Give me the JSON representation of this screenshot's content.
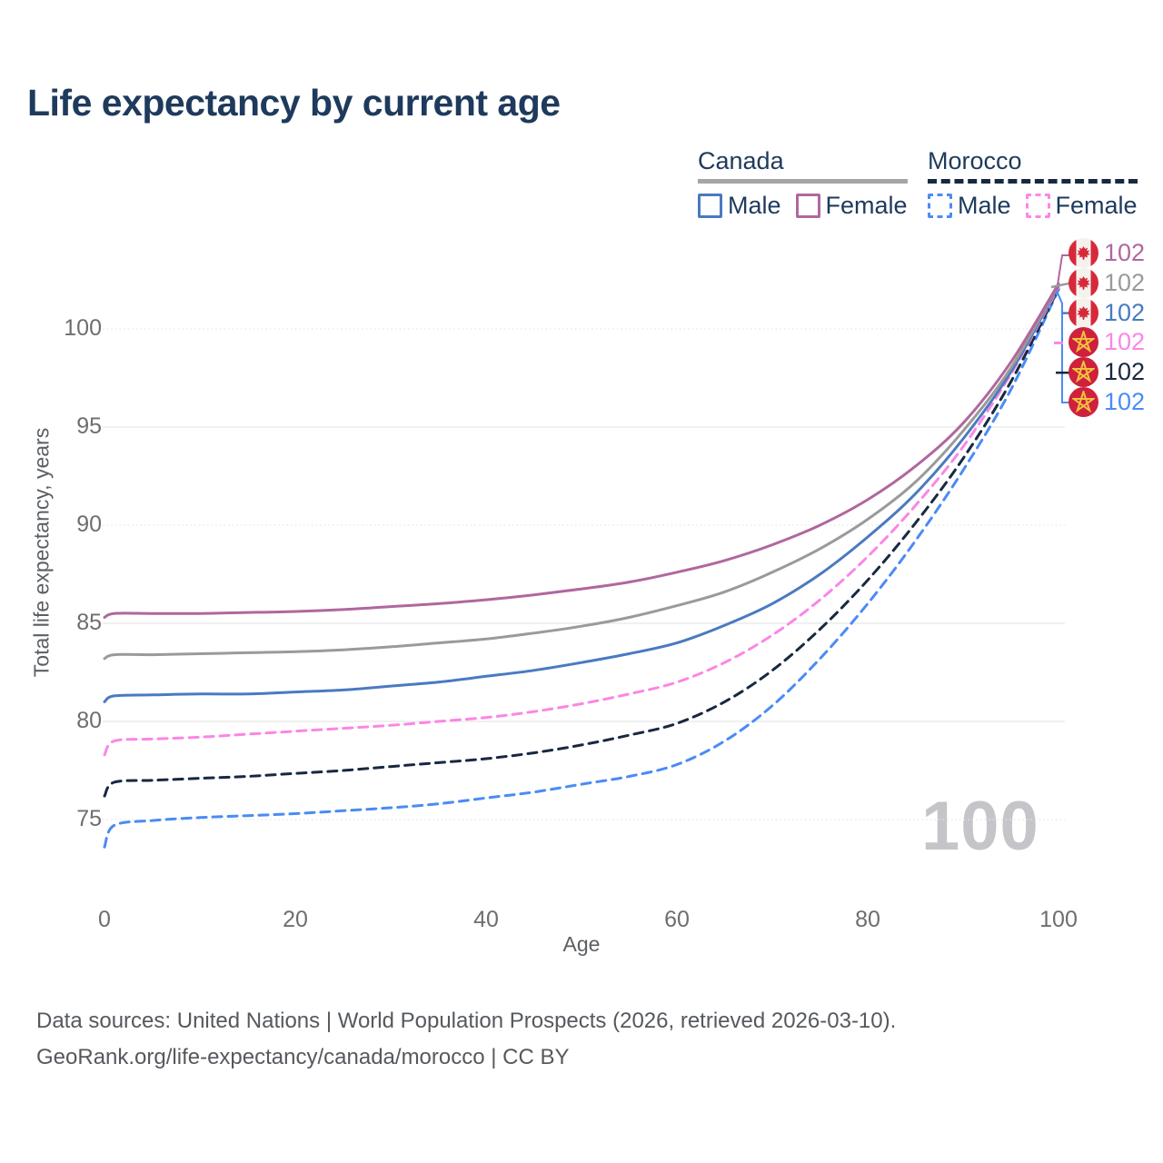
{
  "title": "Life expectancy by current age",
  "watermark": "100",
  "legend": {
    "groups": [
      {
        "label": "Canada",
        "line_style": "solid",
        "underline_color": "#a5a5a5",
        "items": [
          {
            "label": "Male",
            "color": "#4a7ac0"
          },
          {
            "label": "Female",
            "color": "#b0679e"
          }
        ]
      },
      {
        "label": "Morocco",
        "line_style": "dashed",
        "underline_color": "#172940",
        "items": [
          {
            "label": "Male",
            "color": "#4b8bf5"
          },
          {
            "label": "Female",
            "color": "#fb86e5"
          }
        ]
      }
    ]
  },
  "axes": {
    "x_title": "Age",
    "y_title": "Total life expectancy, years"
  },
  "end_labels": [
    {
      "flag": "canada",
      "series": "canada-female",
      "value": "102",
      "color": "#b0679e"
    },
    {
      "flag": "canada",
      "series": "canada-total",
      "value": "102",
      "color": "#9a9a9a"
    },
    {
      "flag": "canada",
      "series": "canada-male",
      "value": "102",
      "color": "#4a7ac0"
    },
    {
      "flag": "morocco",
      "series": "morocco-female",
      "value": "102",
      "color": "#fb86e5"
    },
    {
      "flag": "morocco",
      "series": "morocco-total",
      "value": "102",
      "color": "#172940"
    },
    {
      "flag": "morocco",
      "series": "morocco-male",
      "value": "102",
      "color": "#4b8bf5"
    }
  ],
  "footer": {
    "line1": "Data sources: United Nations | World Population Prospects (2026, retrieved 2026-03-10).",
    "line2": "GeoRank.org/life-expectancy/canada/morocco | CC BY"
  },
  "chart_data": {
    "type": "line",
    "title": "Life expectancy by current age",
    "xlabel": "Age",
    "ylabel": "Total life expectancy, years",
    "xlim": [
      0,
      100
    ],
    "ylim": [
      73,
      103
    ],
    "x_ticks": [
      0,
      20,
      40,
      60,
      80,
      100
    ],
    "y_ticks": [
      75,
      80,
      85,
      90,
      95,
      100
    ],
    "grid": "horizontal-only",
    "legend_position": "top-right",
    "x": [
      0,
      1,
      5,
      10,
      15,
      20,
      25,
      30,
      35,
      40,
      45,
      50,
      55,
      60,
      65,
      70,
      75,
      80,
      85,
      90,
      95,
      100
    ],
    "series": [
      {
        "id": "morocco-male",
        "name": "Morocco Male",
        "color": "#4b8bf5",
        "dash": true,
        "values": [
          73.6,
          74.7,
          74.95,
          75.1,
          75.2,
          75.3,
          75.45,
          75.6,
          75.8,
          76.1,
          76.4,
          76.8,
          77.2,
          77.8,
          79.0,
          80.8,
          83.2,
          86.0,
          89.2,
          92.8,
          96.9,
          102.0
        ]
      },
      {
        "id": "morocco-total",
        "name": "Morocco Both sexes",
        "color": "#172940",
        "dash": true,
        "values": [
          76.2,
          76.9,
          77.0,
          77.1,
          77.2,
          77.35,
          77.5,
          77.7,
          77.9,
          78.1,
          78.4,
          78.8,
          79.3,
          79.9,
          81.0,
          82.6,
          84.7,
          87.2,
          90.1,
          93.4,
          97.3,
          102.05
        ]
      },
      {
        "id": "morocco-female",
        "name": "Morocco Female",
        "color": "#fb86e5",
        "dash": true,
        "values": [
          78.3,
          79.0,
          79.1,
          79.2,
          79.35,
          79.5,
          79.65,
          79.8,
          80.0,
          80.2,
          80.5,
          80.9,
          81.4,
          82.0,
          83.0,
          84.4,
          86.2,
          88.4,
          91.0,
          94.0,
          97.7,
          102.1
        ]
      },
      {
        "id": "canada-male",
        "name": "Canada Male",
        "color": "#4a7ac0",
        "dash": false,
        "values": [
          81.0,
          81.3,
          81.35,
          81.4,
          81.4,
          81.5,
          81.6,
          81.8,
          82.0,
          82.3,
          82.6,
          83.0,
          83.45,
          84.0,
          84.9,
          86.0,
          87.5,
          89.4,
          91.6,
          94.4,
          97.8,
          102.2
        ]
      },
      {
        "id": "canada-total",
        "name": "Canada Both sexes",
        "color": "#9a9a9a",
        "dash": false,
        "values": [
          83.2,
          83.4,
          83.4,
          83.45,
          83.5,
          83.55,
          83.65,
          83.8,
          84.0,
          84.2,
          84.5,
          84.85,
          85.3,
          85.9,
          86.6,
          87.6,
          88.8,
          90.3,
          92.2,
          94.8,
          98.0,
          102.25
        ]
      },
      {
        "id": "canada-female",
        "name": "Canada Female",
        "color": "#b0679e",
        "dash": false,
        "values": [
          85.3,
          85.5,
          85.5,
          85.5,
          85.55,
          85.6,
          85.7,
          85.85,
          86.0,
          86.2,
          86.45,
          86.75,
          87.1,
          87.6,
          88.2,
          89.0,
          90.0,
          91.3,
          93.0,
          95.2,
          98.3,
          102.3
        ]
      }
    ],
    "end_value_label": "102",
    "annotations": [
      {
        "text": "100",
        "role": "age-counter-watermark",
        "position": "bottom-right"
      }
    ]
  }
}
